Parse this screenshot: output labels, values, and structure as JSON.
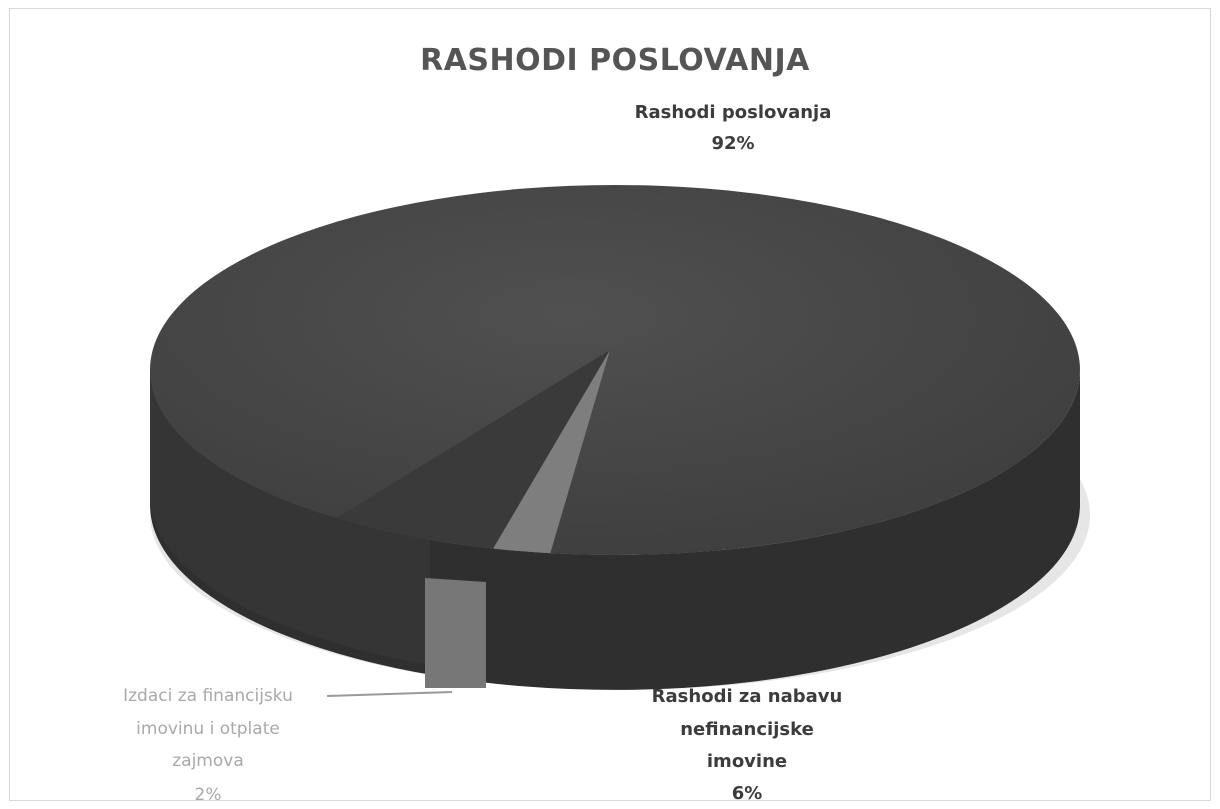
{
  "chart_data": {
    "type": "pie",
    "title": "RASHODI POSLOVANJA",
    "slices": [
      {
        "label_lines": [
          "Rashodi poslovanja"
        ],
        "percent_label": "92%",
        "value": 92,
        "color": "#474747"
      },
      {
        "label_lines": [
          "Rashodi za nabavu",
          "nefinancijske",
          "imovine"
        ],
        "percent_label": "6%",
        "value": 6,
        "color": "#3a3a3a"
      },
      {
        "label_lines": [
          "Izdaci za financijsku",
          "imovinu i otplate",
          "zajmova"
        ],
        "percent_label": "2%",
        "value": 2,
        "color": "#7e7e7e"
      }
    ],
    "legend": "none",
    "style": "3d"
  }
}
